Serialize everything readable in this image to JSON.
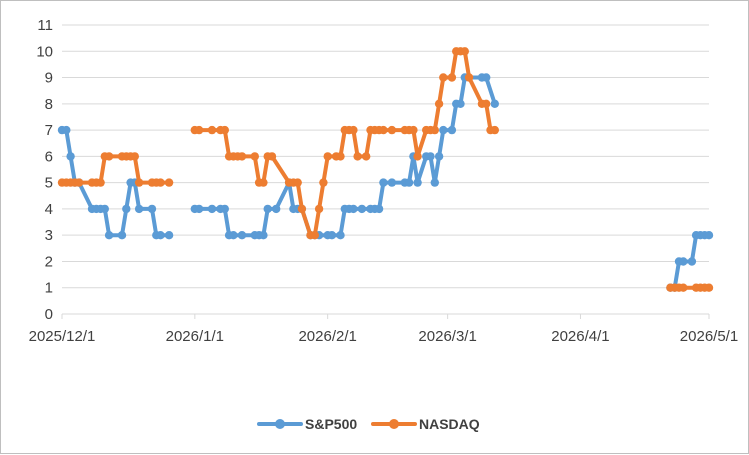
{
  "chart_data": {
    "type": "line",
    "ylim": [
      0,
      11
    ],
    "yticks": [
      "0",
      "1",
      "2",
      "3",
      "4",
      "5",
      "6",
      "7",
      "8",
      "9",
      "10",
      "11"
    ],
    "xlim": [
      "2025-12-01",
      "2026-05-01"
    ],
    "xticks": [
      {
        "date": "2025-12-01",
        "label": "2025/12/1"
      },
      {
        "date": "2026-01-01",
        "label": "2026/1/1"
      },
      {
        "date": "2026-02-01",
        "label": "2026/2/1"
      },
      {
        "date": "2026-03-01",
        "label": "2026/3/1"
      },
      {
        "date": "2026-04-01",
        "label": "2026/4/1"
      },
      {
        "date": "2026-05-01",
        "label": "2026/5/1"
      }
    ],
    "grid": "horizontal",
    "legend_position": "bottom",
    "series": [
      {
        "name": "S&P500",
        "color": "#5B9BD5",
        "segments": [
          [
            {
              "x": "2025-12-01",
              "y": 7
            },
            {
              "x": "2025-12-02",
              "y": 7
            },
            {
              "x": "2025-12-03",
              "y": 6
            },
            {
              "x": "2025-12-04",
              "y": 5
            },
            {
              "x": "2025-12-05",
              "y": 5
            },
            {
              "x": "2025-12-08",
              "y": 4
            },
            {
              "x": "2025-12-09",
              "y": 4
            },
            {
              "x": "2025-12-10",
              "y": 4
            },
            {
              "x": "2025-12-11",
              "y": 4
            },
            {
              "x": "2025-12-12",
              "y": 3
            },
            {
              "x": "2025-12-15",
              "y": 3
            },
            {
              "x": "2025-12-16",
              "y": 4
            },
            {
              "x": "2025-12-17",
              "y": 5
            },
            {
              "x": "2025-12-18",
              "y": 5
            },
            {
              "x": "2025-12-19",
              "y": 4
            },
            {
              "x": "2025-12-22",
              "y": 4
            },
            {
              "x": "2025-12-23",
              "y": 3
            },
            {
              "x": "2025-12-24",
              "y": 3
            },
            {
              "x": "2025-12-26",
              "y": 3
            }
          ],
          [
            {
              "x": "2026-01-01",
              "y": 4
            },
            {
              "x": "2026-01-02",
              "y": 4
            },
            {
              "x": "2026-01-05",
              "y": 4
            },
            {
              "x": "2026-01-07",
              "y": 4
            },
            {
              "x": "2026-01-08",
              "y": 4
            },
            {
              "x": "2026-01-09",
              "y": 3
            },
            {
              "x": "2026-01-10",
              "y": 3
            },
            {
              "x": "2026-01-12",
              "y": 3
            },
            {
              "x": "2026-01-15",
              "y": 3
            },
            {
              "x": "2026-01-16",
              "y": 3
            },
            {
              "x": "2026-01-17",
              "y": 3
            },
            {
              "x": "2026-01-18",
              "y": 4
            },
            {
              "x": "2026-01-20",
              "y": 4
            },
            {
              "x": "2026-01-23",
              "y": 5
            },
            {
              "x": "2026-01-24",
              "y": 4
            },
            {
              "x": "2026-01-25",
              "y": 4
            },
            {
              "x": "2026-01-26",
              "y": 4
            },
            {
              "x": "2026-01-28",
              "y": 3
            },
            {
              "x": "2026-01-29",
              "y": 3
            },
            {
              "x": "2026-01-30",
              "y": 3
            },
            {
              "x": "2026-02-01",
              "y": 3
            },
            {
              "x": "2026-02-02",
              "y": 3
            },
            {
              "x": "2026-02-04",
              "y": 3
            },
            {
              "x": "2026-02-05",
              "y": 4
            },
            {
              "x": "2026-02-06",
              "y": 4
            },
            {
              "x": "2026-02-07",
              "y": 4
            },
            {
              "x": "2026-02-09",
              "y": 4
            },
            {
              "x": "2026-02-11",
              "y": 4
            },
            {
              "x": "2026-02-12",
              "y": 4
            },
            {
              "x": "2026-02-13",
              "y": 4
            },
            {
              "x": "2026-02-14",
              "y": 5
            },
            {
              "x": "2026-02-16",
              "y": 5
            },
            {
              "x": "2026-02-19",
              "y": 5
            },
            {
              "x": "2026-02-20",
              "y": 5
            },
            {
              "x": "2026-02-21",
              "y": 6
            },
            {
              "x": "2026-02-22",
              "y": 5
            },
            {
              "x": "2026-02-24",
              "y": 6
            },
            {
              "x": "2026-02-25",
              "y": 6
            },
            {
              "x": "2026-02-26",
              "y": 5
            },
            {
              "x": "2026-02-27",
              "y": 6
            },
            {
              "x": "2026-02-28",
              "y": 7
            },
            {
              "x": "2026-03-02",
              "y": 7
            },
            {
              "x": "2026-03-03",
              "y": 8
            },
            {
              "x": "2026-03-04",
              "y": 8
            },
            {
              "x": "2026-03-05",
              "y": 9
            },
            {
              "x": "2026-03-09",
              "y": 9
            },
            {
              "x": "2026-03-10",
              "y": 9
            },
            {
              "x": "2026-03-12",
              "y": 8
            }
          ],
          [
            {
              "x": "2026-04-22",
              "y": 1
            },
            {
              "x": "2026-04-23",
              "y": 1
            },
            {
              "x": "2026-04-24",
              "y": 2
            },
            {
              "x": "2026-04-25",
              "y": 2
            },
            {
              "x": "2026-04-27",
              "y": 2
            },
            {
              "x": "2026-04-28",
              "y": 3
            },
            {
              "x": "2026-04-29",
              "y": 3
            },
            {
              "x": "2026-04-30",
              "y": 3
            },
            {
              "x": "2026-05-01",
              "y": 3
            }
          ]
        ]
      },
      {
        "name": "NASDAQ",
        "color": "#ED7D31",
        "segments": [
          [
            {
              "x": "2025-12-01",
              "y": 5
            },
            {
              "x": "2025-12-02",
              "y": 5
            },
            {
              "x": "2025-12-03",
              "y": 5
            },
            {
              "x": "2025-12-04",
              "y": 5
            },
            {
              "x": "2025-12-05",
              "y": 5
            },
            {
              "x": "2025-12-08",
              "y": 5
            },
            {
              "x": "2025-12-09",
              "y": 5
            },
            {
              "x": "2025-12-10",
              "y": 5
            },
            {
              "x": "2025-12-11",
              "y": 6
            },
            {
              "x": "2025-12-12",
              "y": 6
            },
            {
              "x": "2025-12-15",
              "y": 6
            },
            {
              "x": "2025-12-16",
              "y": 6
            },
            {
              "x": "2025-12-17",
              "y": 6
            },
            {
              "x": "2025-12-18",
              "y": 6
            },
            {
              "x": "2025-12-19",
              "y": 5
            },
            {
              "x": "2025-12-22",
              "y": 5
            },
            {
              "x": "2025-12-23",
              "y": 5
            },
            {
              "x": "2025-12-24",
              "y": 5
            },
            {
              "x": "2025-12-26",
              "y": 5
            }
          ],
          [
            {
              "x": "2026-01-01",
              "y": 7
            },
            {
              "x": "2026-01-02",
              "y": 7
            },
            {
              "x": "2026-01-05",
              "y": 7
            },
            {
              "x": "2026-01-07",
              "y": 7
            },
            {
              "x": "2026-01-08",
              "y": 7
            },
            {
              "x": "2026-01-09",
              "y": 6
            },
            {
              "x": "2026-01-10",
              "y": 6
            },
            {
              "x": "2026-01-11",
              "y": 6
            },
            {
              "x": "2026-01-12",
              "y": 6
            },
            {
              "x": "2026-01-15",
              "y": 6
            },
            {
              "x": "2026-01-16",
              "y": 5
            },
            {
              "x": "2026-01-17",
              "y": 5
            },
            {
              "x": "2026-01-18",
              "y": 6
            },
            {
              "x": "2026-01-19",
              "y": 6
            },
            {
              "x": "2026-01-23",
              "y": 5
            },
            {
              "x": "2026-01-24",
              "y": 5
            },
            {
              "x": "2026-01-25",
              "y": 5
            },
            {
              "x": "2026-01-26",
              "y": 4
            },
            {
              "x": "2026-01-28",
              "y": 3
            },
            {
              "x": "2026-01-29",
              "y": 3
            },
            {
              "x": "2026-01-30",
              "y": 4
            },
            {
              "x": "2026-01-31",
              "y": 5
            },
            {
              "x": "2026-02-01",
              "y": 6
            },
            {
              "x": "2026-02-03",
              "y": 6
            },
            {
              "x": "2026-02-04",
              "y": 6
            },
            {
              "x": "2026-02-05",
              "y": 7
            },
            {
              "x": "2026-02-06",
              "y": 7
            },
            {
              "x": "2026-02-07",
              "y": 7
            },
            {
              "x": "2026-02-08",
              "y": 6
            },
            {
              "x": "2026-02-10",
              "y": 6
            },
            {
              "x": "2026-02-11",
              "y": 7
            },
            {
              "x": "2026-02-12",
              "y": 7
            },
            {
              "x": "2026-02-13",
              "y": 7
            },
            {
              "x": "2026-02-14",
              "y": 7
            },
            {
              "x": "2026-02-16",
              "y": 7
            },
            {
              "x": "2026-02-19",
              "y": 7
            },
            {
              "x": "2026-02-20",
              "y": 7
            },
            {
              "x": "2026-02-21",
              "y": 7
            },
            {
              "x": "2026-02-22",
              "y": 6
            },
            {
              "x": "2026-02-24",
              "y": 7
            },
            {
              "x": "2026-02-25",
              "y": 7
            },
            {
              "x": "2026-02-26",
              "y": 7
            },
            {
              "x": "2026-02-27",
              "y": 8
            },
            {
              "x": "2026-02-28",
              "y": 9
            },
            {
              "x": "2026-03-02",
              "y": 9
            },
            {
              "x": "2026-03-03",
              "y": 10
            },
            {
              "x": "2026-03-04",
              "y": 10
            },
            {
              "x": "2026-03-05",
              "y": 10
            },
            {
              "x": "2026-03-06",
              "y": 9
            },
            {
              "x": "2026-03-09",
              "y": 8
            },
            {
              "x": "2026-03-10",
              "y": 8
            },
            {
              "x": "2026-03-11",
              "y": 7
            },
            {
              "x": "2026-03-12",
              "y": 7
            }
          ],
          [
            {
              "x": "2026-04-22",
              "y": 1
            },
            {
              "x": "2026-04-23",
              "y": 1
            },
            {
              "x": "2026-04-24",
              "y": 1
            },
            {
              "x": "2026-04-25",
              "y": 1
            },
            {
              "x": "2026-04-28",
              "y": 1
            },
            {
              "x": "2026-04-29",
              "y": 1
            },
            {
              "x": "2026-04-30",
              "y": 1
            },
            {
              "x": "2026-05-01",
              "y": 1
            }
          ]
        ]
      }
    ]
  }
}
